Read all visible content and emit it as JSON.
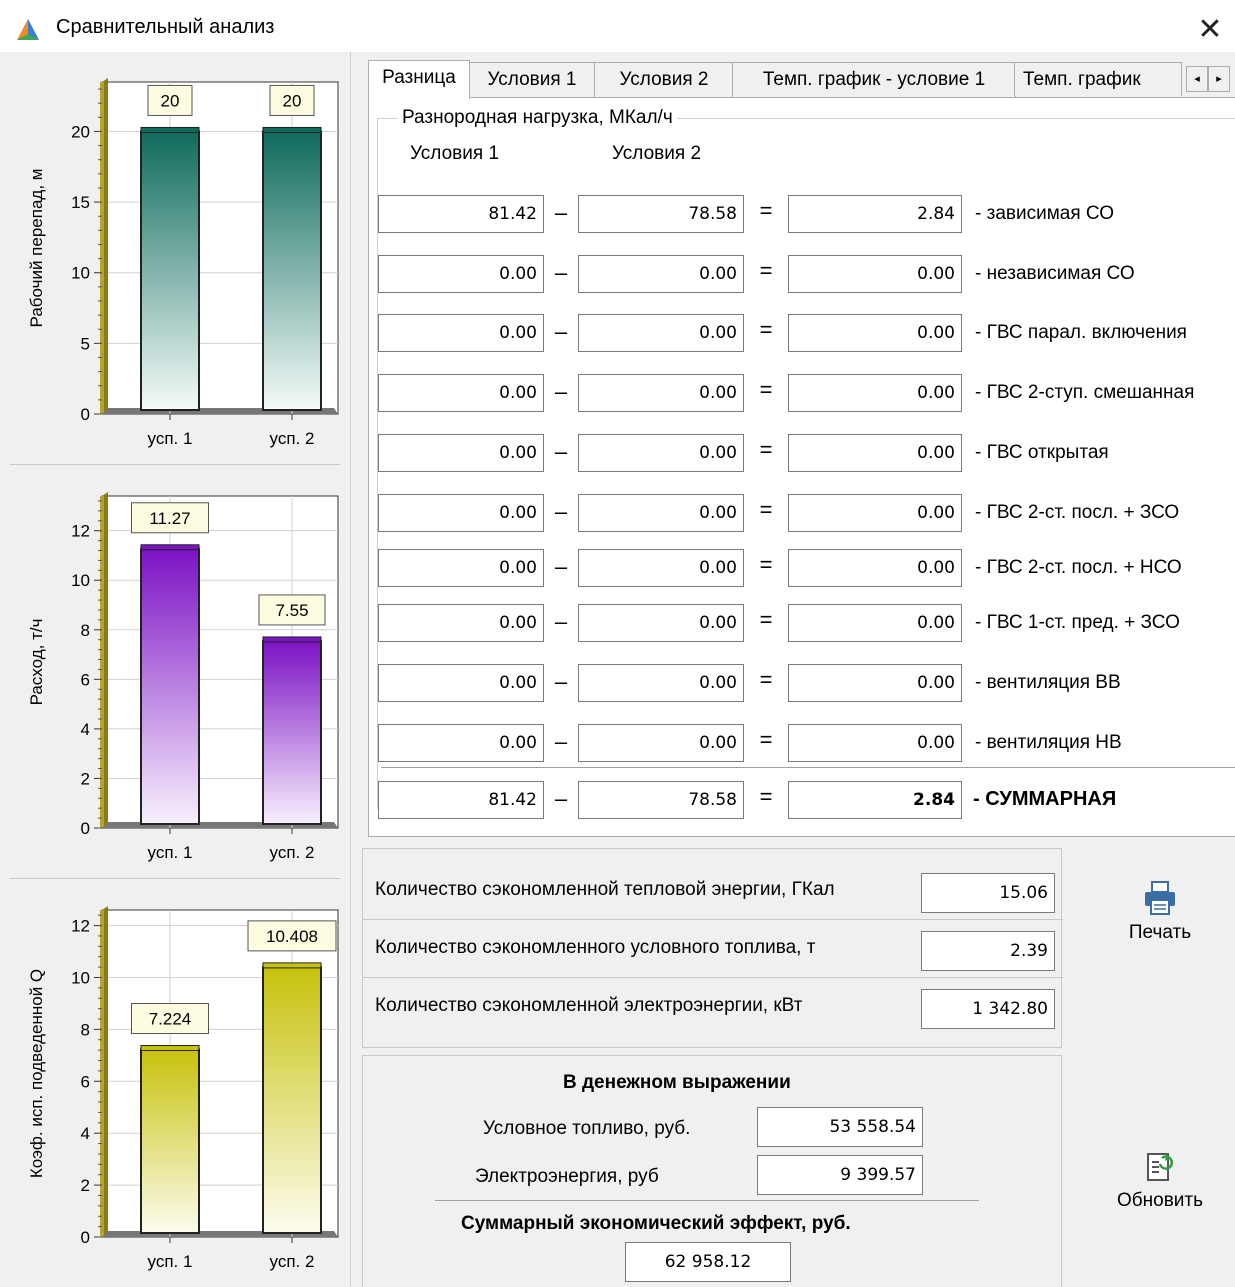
{
  "window": {
    "title": "Сравнительный анализ",
    "close_glyph": "✕",
    "icon": "app-triangle-icon"
  },
  "tabs": {
    "items": [
      "Разница",
      "Условия 1",
      "Условия 2",
      "Темп. график - условие 1",
      "Темп. график"
    ],
    "active": "Разница",
    "scroll_left": "◂",
    "scroll_right": "▸"
  },
  "diff": {
    "group_caption": "Разнородная нагрузка, МКал/ч",
    "col1_header": "Условия 1",
    "col2_header": "Условия 2",
    "minus": "–",
    "equals": "=",
    "rows": [
      {
        "a": "81.42",
        "b": "78.58",
        "r": "2.84",
        "label": "- зависимая СО"
      },
      {
        "a": "0.00",
        "b": "0.00",
        "r": "0.00",
        "label": "- независимая СО"
      },
      {
        "a": "0.00",
        "b": "0.00",
        "r": "0.00",
        "label": "- ГВС парал. включения"
      },
      {
        "a": "0.00",
        "b": "0.00",
        "r": "0.00",
        "label": "- ГВС 2-ступ. смешанная"
      },
      {
        "a": "0.00",
        "b": "0.00",
        "r": "0.00",
        "label": "- ГВС открытая"
      },
      {
        "a": "0.00",
        "b": "0.00",
        "r": "0.00",
        "label": "- ГВС 2-ст. посл. + ЗСО"
      },
      {
        "a": "0.00",
        "b": "0.00",
        "r": "0.00",
        "label": "- ГВС 2-ст. посл. + НСО"
      },
      {
        "a": "0.00",
        "b": "0.00",
        "r": "0.00",
        "label": "- ГВС 1-ст. пред. + ЗСО"
      },
      {
        "a": "0.00",
        "b": "0.00",
        "r": "0.00",
        "label": "- вентиляция ВВ"
      },
      {
        "a": "0.00",
        "b": "0.00",
        "r": "0.00",
        "label": "- вентиляция НВ"
      }
    ],
    "total": {
      "a": "81.42",
      "b": "78.58",
      "r": "2.84",
      "label": "- СУММАРНАЯ"
    }
  },
  "savings": {
    "heat_label": "Количество сэкономленной тепловой энергии, ГКал",
    "heat_value": "15.06",
    "fuel_label": "Количество сэкономленного условного топлива, т",
    "fuel_value": "2.39",
    "elec_label": "Количество сэкономленной электроэнергии, кВт",
    "elec_value": "1 342.80"
  },
  "money": {
    "title": "В денежном выражении",
    "fuel_label": "Условное топливо, руб.",
    "fuel_value": "53 558.54",
    "elec_label": "Электроэнергия, руб",
    "elec_value": "9 399.57",
    "total_label": "Суммарный экономический эффект, руб.",
    "total_value": "62 958.12"
  },
  "buttons": {
    "print": "Печать",
    "refresh": "Обновить",
    "print_icon": "printer-icon",
    "refresh_icon": "refresh-document-icon"
  },
  "chart_data": [
    {
      "type": "bar",
      "ylabel": "Рабочий перепад, м",
      "categories": [
        "усп. 1",
        "усп. 2"
      ],
      "values": [
        20,
        20
      ],
      "value_labels": [
        "20",
        "20"
      ],
      "ylim": [
        0,
        23.5
      ],
      "yticks": [
        0,
        5,
        10,
        15,
        20
      ],
      "color_top": "#0f6b5c",
      "color_bottom": "#f4fbf9"
    },
    {
      "type": "bar",
      "ylabel": "Расход, т/ч",
      "categories": [
        "усп. 1",
        "усп. 2"
      ],
      "values": [
        11.27,
        7.55
      ],
      "value_labels": [
        "11.27",
        "7.55"
      ],
      "ylim": [
        0,
        13.4
      ],
      "yticks": [
        0,
        2,
        4,
        6,
        8,
        10,
        12
      ],
      "color_top": "#7b12c4",
      "color_bottom": "#f8f0fd"
    },
    {
      "type": "bar",
      "ylabel": "Коэф. исп. подведенной Q",
      "categories": [
        "усп. 1",
        "усп. 2"
      ],
      "values": [
        7.224,
        10.408
      ],
      "value_labels": [
        "7.224",
        "10.408"
      ],
      "ylim": [
        0,
        12.6
      ],
      "yticks": [
        0,
        2,
        4,
        6,
        8,
        10,
        12
      ],
      "color_top": "#c7c20c",
      "color_bottom": "#fcfcee"
    }
  ]
}
